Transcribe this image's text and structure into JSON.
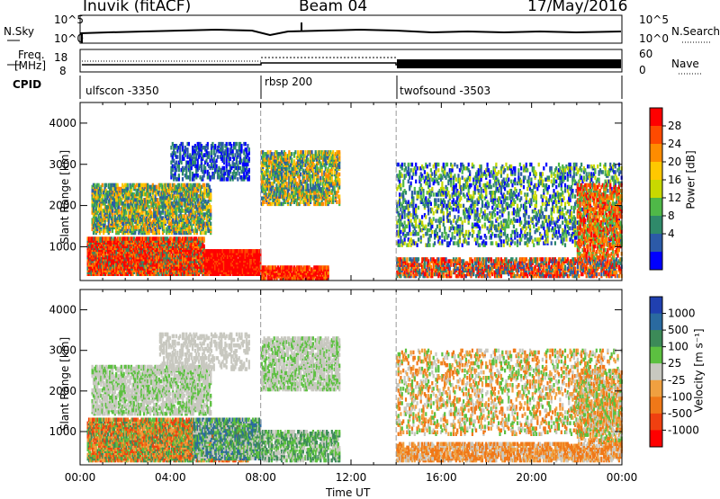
{
  "header": {
    "radar": "Inuvik (fitACF)",
    "beam": "Beam 04",
    "date": "17/May/2016"
  },
  "top_panels": {
    "nsky_label": "N.Sky",
    "nsearch_label": "N.Search",
    "left_ticks": [
      "10^5",
      "10^0"
    ],
    "right_ticks": [
      "10^5",
      "10^0"
    ],
    "freq_label": "Freq.",
    "freq_unit": "[MHz]",
    "freq_ticks": [
      "18",
      "8"
    ],
    "nave_label": "Nave",
    "nave_ticks": [
      "60",
      "0"
    ],
    "cpid_label": "CPID",
    "cpid_segments": [
      "ulfscon -3350",
      "rbsp 200",
      "twofsound -3503"
    ]
  },
  "chart_data": [
    {
      "type": "heatmap",
      "title": "",
      "xlabel": "",
      "ylabel": "Slant Range [km]",
      "x_ticks": [
        "00:00",
        "04:00",
        "08:00",
        "12:00",
        "16:00",
        "20:00",
        "00:00"
      ],
      "y_ticks": [
        "1000",
        "2000",
        "3000",
        "4000"
      ],
      "ylim": [
        180,
        4500
      ],
      "colorbar": {
        "label": "Power [dB]",
        "ticks": [
          "28",
          "24",
          "20",
          "16",
          "12",
          "8",
          "4"
        ],
        "colors": [
          "#ff0000",
          "#ff4a00",
          "#ff8c00",
          "#ffc800",
          "#c8d800",
          "#4fb848",
          "#2f8a6a",
          "#2c5aa8",
          "#0000ff"
        ]
      }
    },
    {
      "type": "heatmap",
      "title": "",
      "xlabel": "Time UT",
      "ylabel": "Slant Range [km]",
      "x_ticks": [
        "00:00",
        "04:00",
        "08:00",
        "12:00",
        "16:00",
        "20:00",
        "00:00"
      ],
      "y_ticks": [
        "1000",
        "2000",
        "3000",
        "4000"
      ],
      "ylim": [
        180,
        4500
      ],
      "colorbar": {
        "label": "Velocity [m s⁻¹]",
        "ticks": [
          "1000",
          "500",
          "100",
          "25",
          "-25",
          "-100",
          "-500",
          "-1000"
        ],
        "colors": [
          "#2040b0",
          "#2a6aa0",
          "#3c8a58",
          "#5cc040",
          "#c8c8c0",
          "#f0a040",
          "#f07818",
          "#f04010",
          "#ff0000"
        ]
      }
    }
  ]
}
